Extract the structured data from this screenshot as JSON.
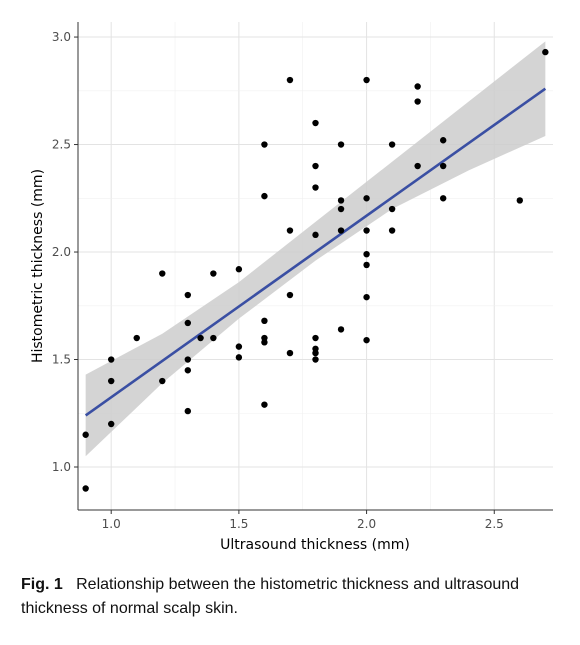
{
  "chart_data": {
    "type": "scatter",
    "xlabel": "Ultrasound thickness (mm)",
    "ylabel": "Histometric thickness (mm)",
    "xlim": [
      0.87,
      2.73
    ],
    "ylim": [
      0.8,
      3.07
    ],
    "x_ticks": [
      1.0,
      1.5,
      2.0,
      2.5
    ],
    "y_ticks": [
      1.0,
      1.5,
      2.0,
      2.5,
      3.0
    ],
    "x_tick_labels": [
      "1.0",
      "1.5",
      "2.0",
      "2.5"
    ],
    "y_tick_labels": [
      "1.0",
      "1.5",
      "2.0",
      "2.5",
      "3.0"
    ],
    "grid": true,
    "legend": "none",
    "points_color": "#000000",
    "fit_line_color": "#3a4fa3",
    "confidence_band_color": "#cccccc",
    "points": [
      [
        0.9,
        0.9
      ],
      [
        0.9,
        1.15
      ],
      [
        1.0,
        1.2
      ],
      [
        1.0,
        1.4
      ],
      [
        1.0,
        1.5
      ],
      [
        1.1,
        1.6
      ],
      [
        1.2,
        1.4
      ],
      [
        1.2,
        1.9
      ],
      [
        1.3,
        1.26
      ],
      [
        1.3,
        1.45
      ],
      [
        1.3,
        1.5
      ],
      [
        1.3,
        1.67
      ],
      [
        1.3,
        1.8
      ],
      [
        1.35,
        1.6
      ],
      [
        1.4,
        1.6
      ],
      [
        1.4,
        1.9
      ],
      [
        1.5,
        1.51
      ],
      [
        1.5,
        1.56
      ],
      [
        1.5,
        1.92
      ],
      [
        1.6,
        1.29
      ],
      [
        1.6,
        1.58
      ],
      [
        1.6,
        1.6
      ],
      [
        1.6,
        1.68
      ],
      [
        1.6,
        2.26
      ],
      [
        1.6,
        2.5
      ],
      [
        1.7,
        1.53
      ],
      [
        1.7,
        1.8
      ],
      [
        1.7,
        2.1
      ],
      [
        1.7,
        2.8
      ],
      [
        1.8,
        1.5
      ],
      [
        1.8,
        1.53
      ],
      [
        1.8,
        1.55
      ],
      [
        1.8,
        1.6
      ],
      [
        1.8,
        2.08
      ],
      [
        1.8,
        2.3
      ],
      [
        1.8,
        2.4
      ],
      [
        1.8,
        2.6
      ],
      [
        1.9,
        1.64
      ],
      [
        1.9,
        2.1
      ],
      [
        1.9,
        2.2
      ],
      [
        1.9,
        2.24
      ],
      [
        1.9,
        2.5
      ],
      [
        2.0,
        1.59
      ],
      [
        2.0,
        1.79
      ],
      [
        2.0,
        1.94
      ],
      [
        2.0,
        1.99
      ],
      [
        2.0,
        2.1
      ],
      [
        2.0,
        2.25
      ],
      [
        2.0,
        2.8
      ],
      [
        2.1,
        2.1
      ],
      [
        2.1,
        2.2
      ],
      [
        2.1,
        2.5
      ],
      [
        2.2,
        2.4
      ],
      [
        2.2,
        2.7
      ],
      [
        2.2,
        2.77
      ],
      [
        2.3,
        2.25
      ],
      [
        2.3,
        2.4
      ],
      [
        2.3,
        2.52
      ],
      [
        2.6,
        2.24
      ],
      [
        2.7,
        2.93
      ]
    ],
    "fit_line": {
      "x": [
        0.9,
        2.7
      ],
      "y": [
        1.24,
        2.76
      ]
    },
    "confidence_band": {
      "x": [
        0.9,
        1.2,
        1.5,
        1.8,
        2.1,
        2.4,
        2.7
      ],
      "lower": [
        1.05,
        1.39,
        1.69,
        1.96,
        2.2,
        2.38,
        2.54
      ],
      "upper": [
        1.43,
        1.62,
        1.86,
        2.14,
        2.42,
        2.7,
        2.98
      ]
    }
  },
  "caption": {
    "label": "Fig. 1",
    "text": "Relationship between the histometric thickness and ultrasound thickness of normal scalp skin."
  }
}
